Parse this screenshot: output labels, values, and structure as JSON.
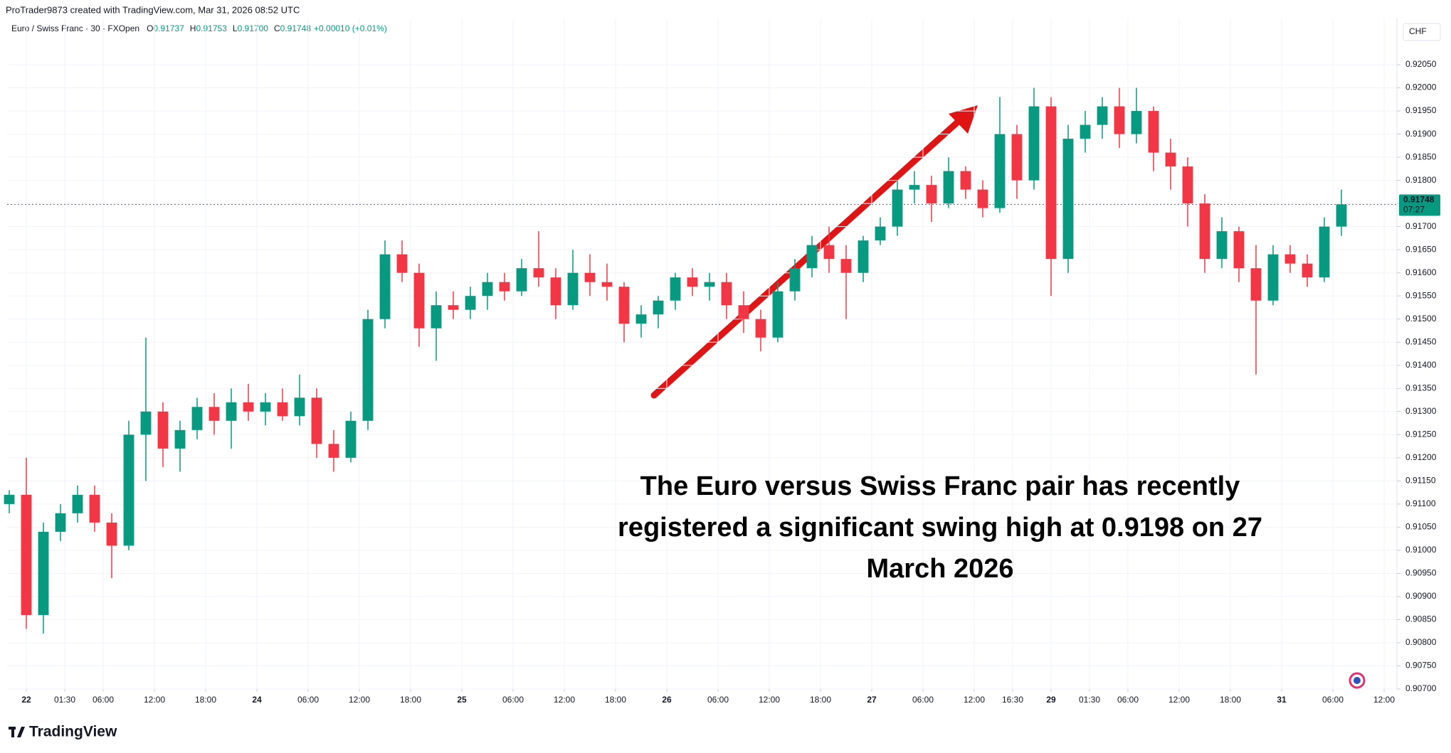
{
  "header": {
    "credit": "ProTrader9873 created with TradingView.com, Mar 31, 2026 08:52 UTC",
    "symbol": "Euro / Swiss Franc · 30 · FXOpen",
    "ohlc": [
      {
        "key": "O",
        "value": "0.91737"
      },
      {
        "key": "H",
        "value": "0.91753"
      },
      {
        "key": "L",
        "value": "0.91700"
      },
      {
        "key": "C",
        "value": "0.91748"
      }
    ],
    "change": "+0.00010 (+0.01%)"
  },
  "footer": {
    "brand": "TradingView"
  },
  "chart_data": {
    "type": "candlestick",
    "currency": "CHF",
    "up_color": "#089981",
    "down_color": "#f23645",
    "grid": true,
    "last_price": 0.91748,
    "countdown": "07:27",
    "annotation": [
      "The Euro versus Swiss Franc pair has recently",
      "registered a significant swing high at 0.9198 on 27",
      "March 2026"
    ],
    "xlim": [
      -0.5,
      325
    ],
    "ylim": [
      0.907,
      0.9215
    ],
    "xticks": [
      {
        "value": 4,
        "label": "22"
      },
      {
        "value": 13,
        "label": "01:30"
      },
      {
        "value": 22,
        "label": "06:00"
      },
      {
        "value": 34,
        "label": "12:00"
      },
      {
        "value": 46,
        "label": "18:00"
      },
      {
        "value": 58,
        "label": "24"
      },
      {
        "value": 70,
        "label": "06:00"
      },
      {
        "value": 82,
        "label": "12:00"
      },
      {
        "value": 94,
        "label": "18:00"
      },
      {
        "value": 106,
        "label": "25"
      },
      {
        "value": 118,
        "label": "06:00"
      },
      {
        "value": 130,
        "label": "12:00"
      },
      {
        "value": 142,
        "label": "18:00"
      },
      {
        "value": 154,
        "label": "26"
      },
      {
        "value": 166,
        "label": "06:00"
      },
      {
        "value": 178,
        "label": "12:00"
      },
      {
        "value": 190,
        "label": "18:00"
      },
      {
        "value": 202,
        "label": "27"
      },
      {
        "value": 214,
        "label": "06:00"
      },
      {
        "value": 226,
        "label": "12:00"
      },
      {
        "value": 235,
        "label": "16:30"
      },
      {
        "value": 244,
        "label": "29"
      },
      {
        "value": 253,
        "label": "01:30"
      },
      {
        "value": 262,
        "label": "06:00"
      },
      {
        "value": 274,
        "label": "12:00"
      },
      {
        "value": 286,
        "label": "18:00"
      },
      {
        "value": 298,
        "label": "31"
      },
      {
        "value": 310,
        "label": "06:00"
      },
      {
        "value": 322,
        "label": "12:00"
      }
    ],
    "yticks": [
      {
        "value": 0.9205,
        "label": "0.92050"
      },
      {
        "value": 0.92,
        "label": "0.92000"
      },
      {
        "value": 0.9195,
        "label": "0.91950"
      },
      {
        "value": 0.919,
        "label": "0.91900"
      },
      {
        "value": 0.9185,
        "label": "0.91850"
      },
      {
        "value": 0.918,
        "label": "0.91800"
      },
      {
        "value": 0.9175,
        "label": "0.91750"
      },
      {
        "value": 0.917,
        "label": "0.91700"
      },
      {
        "value": 0.9165,
        "label": "0.91650"
      },
      {
        "value": 0.916,
        "label": "0.91600"
      },
      {
        "value": 0.9155,
        "label": "0.91550"
      },
      {
        "value": 0.915,
        "label": "0.91500"
      },
      {
        "value": 0.9145,
        "label": "0.91450"
      },
      {
        "value": 0.914,
        "label": "0.91400"
      },
      {
        "value": 0.9135,
        "label": "0.91350"
      },
      {
        "value": 0.913,
        "label": "0.91300"
      },
      {
        "value": 0.9125,
        "label": "0.91250"
      },
      {
        "value": 0.912,
        "label": "0.91200"
      },
      {
        "value": 0.9115,
        "label": "0.91150"
      },
      {
        "value": 0.911,
        "label": "0.91100"
      },
      {
        "value": 0.9105,
        "label": "0.91050"
      },
      {
        "value": 0.91,
        "label": "0.91000"
      },
      {
        "value": 0.9095,
        "label": "0.90950"
      },
      {
        "value": 0.909,
        "label": "0.90900"
      },
      {
        "value": 0.9085,
        "label": "0.90850"
      },
      {
        "value": 0.908,
        "label": "0.90800"
      },
      {
        "value": 0.9075,
        "label": "0.90750"
      },
      {
        "value": 0.907,
        "label": "0.90700"
      }
    ],
    "candles": [
      [
        0,
        0.911,
        0.9113,
        0.9108,
        0.9112
      ],
      [
        4,
        0.9112,
        0.912,
        0.9083,
        0.9086
      ],
      [
        8,
        0.9086,
        0.9106,
        0.9082,
        0.9104
      ],
      [
        12,
        0.9104,
        0.911,
        0.9102,
        0.9108
      ],
      [
        16,
        0.9108,
        0.9114,
        0.9106,
        0.9112
      ],
      [
        20,
        0.9112,
        0.9114,
        0.9104,
        0.9106
      ],
      [
        24,
        0.9106,
        0.9108,
        0.9094,
        0.9101
      ],
      [
        28,
        0.9101,
        0.9128,
        0.91,
        0.9125
      ],
      [
        32,
        0.9125,
        0.9146,
        0.9115,
        0.913
      ],
      [
        36,
        0.913,
        0.9132,
        0.9118,
        0.9122
      ],
      [
        40,
        0.9122,
        0.9128,
        0.9117,
        0.9126
      ],
      [
        44,
        0.9126,
        0.9133,
        0.9124,
        0.9131
      ],
      [
        48,
        0.9131,
        0.9134,
        0.9125,
        0.9128
      ],
      [
        52,
        0.9128,
        0.9135,
        0.9122,
        0.9132
      ],
      [
        56,
        0.9132,
        0.9136,
        0.9128,
        0.913
      ],
      [
        60,
        0.913,
        0.9134,
        0.9127,
        0.9132
      ],
      [
        64,
        0.9132,
        0.9135,
        0.9128,
        0.9129
      ],
      [
        68,
        0.9129,
        0.9138,
        0.9127,
        0.9133
      ],
      [
        72,
        0.9133,
        0.9135,
        0.912,
        0.9123
      ],
      [
        76,
        0.9123,
        0.9126,
        0.9117,
        0.912
      ],
      [
        80,
        0.912,
        0.913,
        0.9119,
        0.9128
      ],
      [
        84,
        0.9128,
        0.9152,
        0.9126,
        0.915
      ],
      [
        88,
        0.915,
        0.9167,
        0.9148,
        0.9164
      ],
      [
        92,
        0.9164,
        0.9167,
        0.9158,
        0.916
      ],
      [
        96,
        0.916,
        0.9162,
        0.9144,
        0.9148
      ],
      [
        100,
        0.9148,
        0.9156,
        0.9141,
        0.9153
      ],
      [
        104,
        0.9153,
        0.9156,
        0.915,
        0.9152
      ],
      [
        108,
        0.9152,
        0.9157,
        0.915,
        0.9155
      ],
      [
        112,
        0.9155,
        0.916,
        0.9152,
        0.9158
      ],
      [
        116,
        0.9158,
        0.916,
        0.9154,
        0.9156
      ],
      [
        120,
        0.9156,
        0.9163,
        0.9155,
        0.9161
      ],
      [
        124,
        0.9161,
        0.9169,
        0.9157,
        0.9159
      ],
      [
        128,
        0.9159,
        0.9161,
        0.915,
        0.9153
      ],
      [
        132,
        0.9153,
        0.9165,
        0.9152,
        0.916
      ],
      [
        136,
        0.916,
        0.9164,
        0.9155,
        0.9158
      ],
      [
        140,
        0.9158,
        0.9162,
        0.9154,
        0.9157
      ],
      [
        144,
        0.9157,
        0.9158,
        0.9145,
        0.9149
      ],
      [
        148,
        0.9149,
        0.9153,
        0.9146,
        0.9151
      ],
      [
        152,
        0.9151,
        0.9155,
        0.9148,
        0.9154
      ],
      [
        156,
        0.9154,
        0.916,
        0.9152,
        0.9159
      ],
      [
        160,
        0.9159,
        0.9161,
        0.9155,
        0.9157
      ],
      [
        164,
        0.9157,
        0.916,
        0.9154,
        0.9158
      ],
      [
        168,
        0.9158,
        0.916,
        0.915,
        0.9153
      ],
      [
        172,
        0.9153,
        0.9156,
        0.9147,
        0.915
      ],
      [
        176,
        0.915,
        0.9152,
        0.9143,
        0.9146
      ],
      [
        180,
        0.9146,
        0.9158,
        0.9145,
        0.9156
      ],
      [
        184,
        0.9156,
        0.9163,
        0.9154,
        0.9161
      ],
      [
        188,
        0.9161,
        0.9168,
        0.9159,
        0.9166
      ],
      [
        192,
        0.9166,
        0.917,
        0.916,
        0.9163
      ],
      [
        196,
        0.9163,
        0.9166,
        0.915,
        0.916
      ],
      [
        200,
        0.916,
        0.9168,
        0.9158,
        0.9167
      ],
      [
        204,
        0.9167,
        0.9172,
        0.9166,
        0.917
      ],
      [
        208,
        0.917,
        0.918,
        0.9168,
        0.9178
      ],
      [
        212,
        0.9178,
        0.9182,
        0.9175,
        0.9179
      ],
      [
        216,
        0.9179,
        0.9181,
        0.9171,
        0.9175
      ],
      [
        220,
        0.9175,
        0.9185,
        0.9174,
        0.9182
      ],
      [
        224,
        0.9182,
        0.9183,
        0.9176,
        0.9178
      ],
      [
        228,
        0.9178,
        0.918,
        0.9172,
        0.9174
      ],
      [
        232,
        0.9174,
        0.9198,
        0.9173,
        0.919
      ],
      [
        236,
        0.919,
        0.9192,
        0.9176,
        0.918
      ],
      [
        240,
        0.918,
        0.92,
        0.9178,
        0.9196
      ],
      [
        244,
        0.9196,
        0.9198,
        0.9155,
        0.9163
      ],
      [
        248,
        0.9163,
        0.9192,
        0.916,
        0.9189
      ],
      [
        252,
        0.9189,
        0.9195,
        0.9186,
        0.9192
      ],
      [
        256,
        0.9192,
        0.9198,
        0.9189,
        0.9196
      ],
      [
        260,
        0.9196,
        0.92,
        0.9187,
        0.919
      ],
      [
        264,
        0.919,
        0.92,
        0.9188,
        0.9195
      ],
      [
        268,
        0.9195,
        0.9196,
        0.9182,
        0.9186
      ],
      [
        272,
        0.9186,
        0.9189,
        0.9178,
        0.9183
      ],
      [
        276,
        0.9183,
        0.9185,
        0.917,
        0.9175
      ],
      [
        280,
        0.9175,
        0.9177,
        0.916,
        0.9163
      ],
      [
        284,
        0.9163,
        0.9172,
        0.9161,
        0.9169
      ],
      [
        288,
        0.9169,
        0.917,
        0.9158,
        0.9161
      ],
      [
        292,
        0.9161,
        0.9166,
        0.9138,
        0.9154
      ],
      [
        296,
        0.9154,
        0.9166,
        0.9153,
        0.9164
      ],
      [
        300,
        0.9164,
        0.9166,
        0.916,
        0.9162
      ],
      [
        304,
        0.9162,
        0.9164,
        0.9157,
        0.9159
      ],
      [
        308,
        0.9159,
        0.9172,
        0.9158,
        0.917
      ],
      [
        312,
        0.917,
        0.9178,
        0.9168,
        0.91748
      ]
    ]
  }
}
